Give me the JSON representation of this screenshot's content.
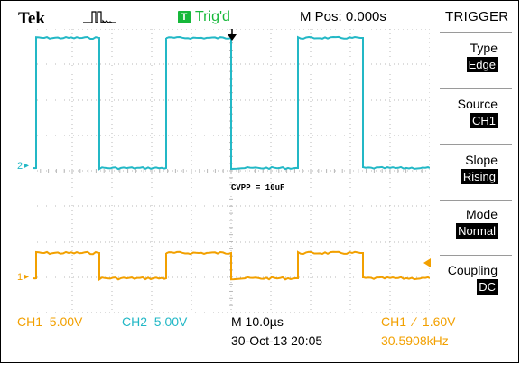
{
  "header": {
    "brand": "Tek",
    "acq_icon": "acquisition-waveform-icon",
    "trigger_badge": "T",
    "trigger_state": "Trig'd",
    "m_pos": "M Pos: 0.000s"
  },
  "menu": {
    "title": "TRIGGER",
    "items": [
      {
        "label": "Type",
        "value": "Edge"
      },
      {
        "label": "Source",
        "value": "CH1"
      },
      {
        "label": "Slope",
        "value": "Rising"
      },
      {
        "label": "Mode",
        "value": "Normal"
      },
      {
        "label": "Coupling",
        "value": "DC"
      }
    ]
  },
  "screen": {
    "annotation": "CVPP = 10uF",
    "ch2_marker": "2",
    "ch1_marker": "1",
    "trigger_pos_marker": "trigger-position-arrow-icon",
    "trigger_level_marker": "trigger-level-arrow-icon"
  },
  "footer": {
    "ch1_scale": "CH1  5.00V",
    "ch2_scale": "CH2  5.00V",
    "timebase": "M 10.0µs",
    "trigger_info": "CH1  ∕  1.60V",
    "datetime": "30-Oct-13 20:05",
    "frequency": "30.5908kHz"
  },
  "colors": {
    "ch1": "#f2a000",
    "ch2": "#23b8c6",
    "trig_green": "#16b83a",
    "grid": "#b8b8b8"
  }
}
